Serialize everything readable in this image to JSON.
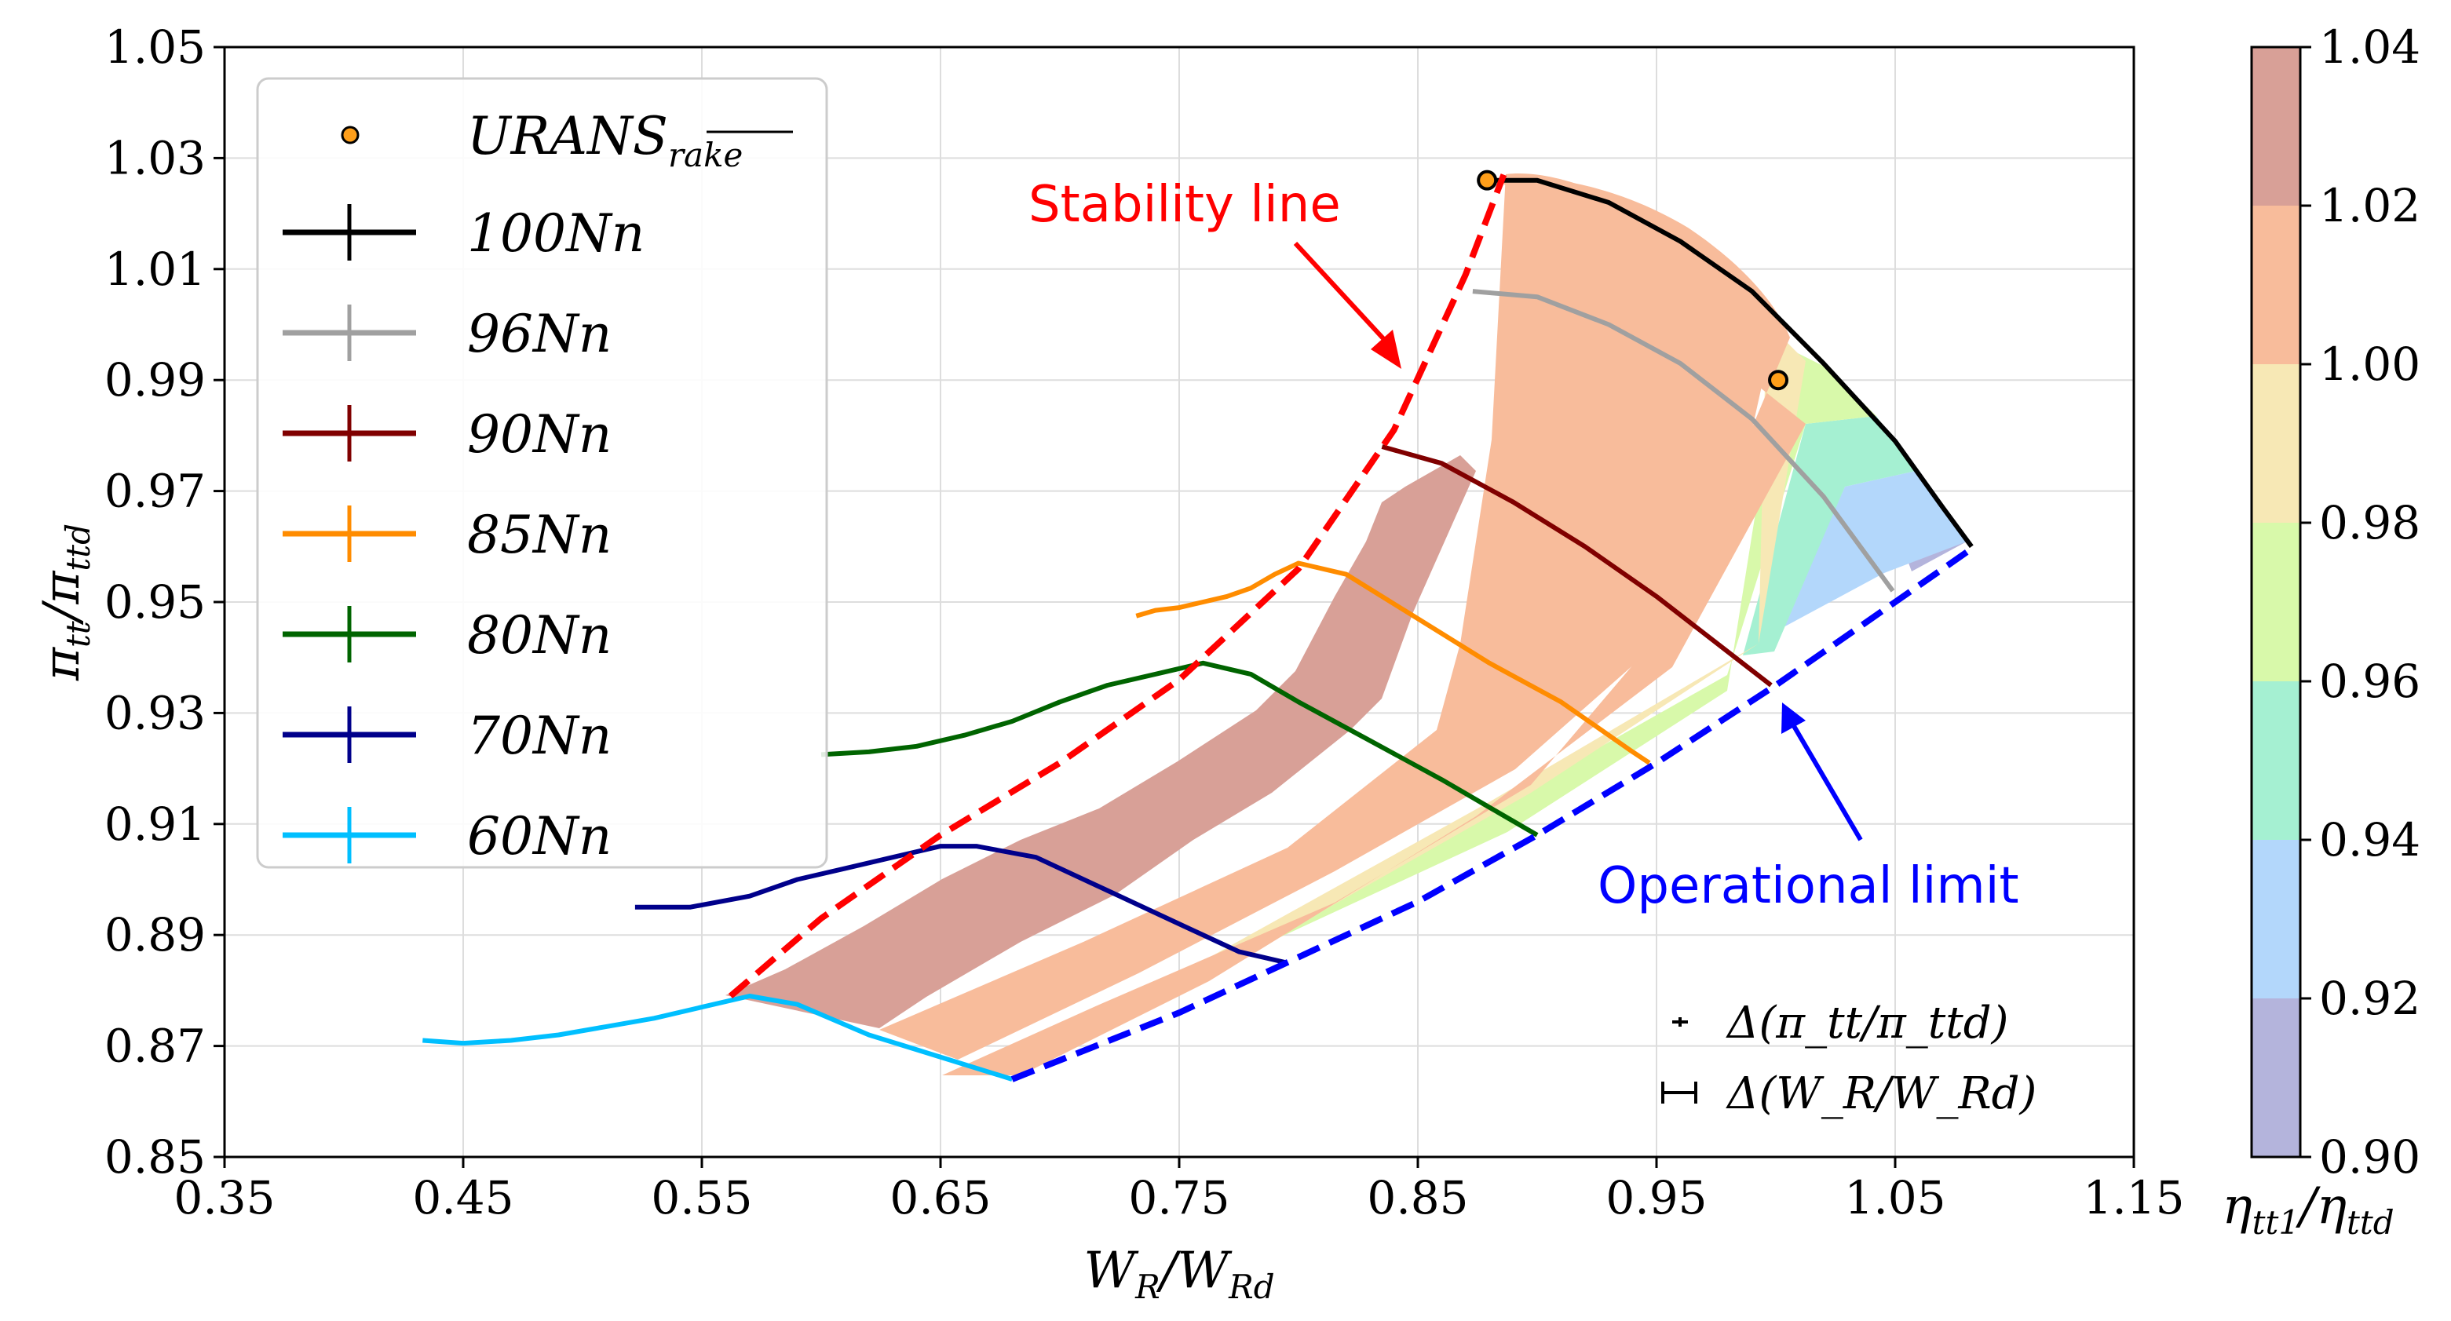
{
  "chart_data": {
    "type": "line",
    "xlabel": "W_R/W_Rd",
    "ylabel": "π_tt/π_ttd",
    "xlim": [
      0.35,
      1.15
    ],
    "ylim": [
      0.85,
      1.05
    ],
    "xticks": [
      "0.35",
      "0.45",
      "0.55",
      "0.65",
      "0.75",
      "0.85",
      "0.95",
      "1.05",
      "1.15"
    ],
    "yticks": [
      "0.85",
      "0.87",
      "0.89",
      "0.91",
      "0.93",
      "0.95",
      "0.97",
      "0.99",
      "1.01",
      "1.03",
      "1.05"
    ],
    "grid": true,
    "legend_position": "top-left",
    "legend": {
      "urans_label": "URANS",
      "urans_subscript": "rake",
      "series_labels": [
        "100Nn",
        "96Nn",
        "90Nn",
        "85Nn",
        "80Nn",
        "70Nn",
        "60Nn"
      ]
    },
    "series": [
      {
        "name": "100Nn",
        "color": "#000000",
        "x": [
          0.882,
          0.9,
          0.93,
          0.96,
          0.99,
          1.02,
          1.05,
          1.07,
          1.082
        ],
        "y": [
          1.026,
          1.026,
          1.022,
          1.015,
          1.006,
          0.993,
          0.979,
          0.967,
          0.96
        ]
      },
      {
        "name": "96Nn",
        "color": "#a0a0a0",
        "x": [
          0.873,
          0.9,
          0.93,
          0.96,
          0.99,
          1.02,
          1.049
        ],
        "y": [
          1.006,
          1.005,
          1.0,
          0.993,
          0.983,
          0.969,
          0.952
        ]
      },
      {
        "name": "90Nn",
        "color": "#800000",
        "x": [
          0.835,
          0.86,
          0.89,
          0.92,
          0.95,
          0.98,
          0.998
        ],
        "y": [
          0.978,
          0.975,
          0.968,
          0.96,
          0.951,
          0.941,
          0.935
        ]
      },
      {
        "name": "85Nn",
        "color": "#ff8c00",
        "x": [
          0.732,
          0.74,
          0.75,
          0.76,
          0.77,
          0.78,
          0.79,
          0.8,
          0.82,
          0.85,
          0.88,
          0.91,
          0.94,
          0.947
        ],
        "y": [
          0.9475,
          0.9485,
          0.949,
          0.95,
          0.951,
          0.9525,
          0.955,
          0.957,
          0.955,
          0.947,
          0.939,
          0.932,
          0.923,
          0.921
        ]
      },
      {
        "name": "80Nn",
        "color": "#006400",
        "x": [
          0.6,
          0.62,
          0.64,
          0.66,
          0.68,
          0.7,
          0.72,
          0.74,
          0.76,
          0.78,
          0.8,
          0.83,
          0.86,
          0.88,
          0.9
        ],
        "y": [
          0.9225,
          0.923,
          0.924,
          0.926,
          0.9285,
          0.932,
          0.935,
          0.937,
          0.939,
          0.937,
          0.932,
          0.925,
          0.918,
          0.913,
          0.908
        ]
      },
      {
        "name": "70Nn",
        "color": "#00008b",
        "x": [
          0.522,
          0.545,
          0.57,
          0.59,
          0.61,
          0.63,
          0.65,
          0.665,
          0.69,
          0.72,
          0.75,
          0.775,
          0.795
        ],
        "y": [
          0.895,
          0.895,
          0.897,
          0.9,
          0.902,
          0.904,
          0.906,
          0.906,
          0.904,
          0.898,
          0.892,
          0.887,
          0.885
        ]
      },
      {
        "name": "60Nn",
        "color": "#00bfff",
        "x": [
          0.433,
          0.45,
          0.47,
          0.49,
          0.51,
          0.53,
          0.55,
          0.57,
          0.59,
          0.62,
          0.65,
          0.68
        ],
        "y": [
          0.871,
          0.8705,
          0.871,
          0.872,
          0.8735,
          0.875,
          0.877,
          0.879,
          0.8775,
          0.872,
          0.868,
          0.864
        ]
      }
    ],
    "urans_rake_points": [
      {
        "x": 0.879,
        "y": 1.026
      },
      {
        "x": 1.001,
        "y": 0.99
      }
    ],
    "stability_line": {
      "label": "Stability line",
      "color": "#ff0000",
      "x": [
        0.562,
        0.6,
        0.65,
        0.7,
        0.75,
        0.8,
        0.84,
        0.87,
        0.886
      ],
      "y": [
        0.879,
        0.893,
        0.908,
        0.921,
        0.936,
        0.956,
        0.981,
        1.009,
        1.027
      ]
    },
    "operational_limit": {
      "label": "Operational limit",
      "color": "#0000ff",
      "x": [
        0.68,
        0.75,
        0.8,
        0.85,
        0.9,
        0.95,
        1.0,
        1.05,
        1.08
      ],
      "y": [
        0.864,
        0.876,
        0.886,
        0.896,
        0.908,
        0.921,
        0.935,
        0.95,
        0.959
      ]
    },
    "efficiency_contours": {
      "label": "η_tt1/η_ttd",
      "levels": [
        0.9,
        0.92,
        0.94,
        0.96,
        0.98,
        1.0,
        1.02,
        1.04
      ],
      "ticks": [
        "0.90",
        "0.92",
        "0.94",
        "0.96",
        "0.98",
        "1.00",
        "1.02",
        "1.04"
      ],
      "band_colors": [
        "#b4b4dc",
        "#b3d7fb",
        "#a5f0d2",
        "#d8f9aa",
        "#f7e8b5",
        "#f8bc9b",
        "#d8a097"
      ]
    },
    "error_bar_legend": {
      "pi_label": "Δ(π_tt/π_ttd)",
      "w_label": "Δ(W_R/W_Rd)"
    }
  }
}
